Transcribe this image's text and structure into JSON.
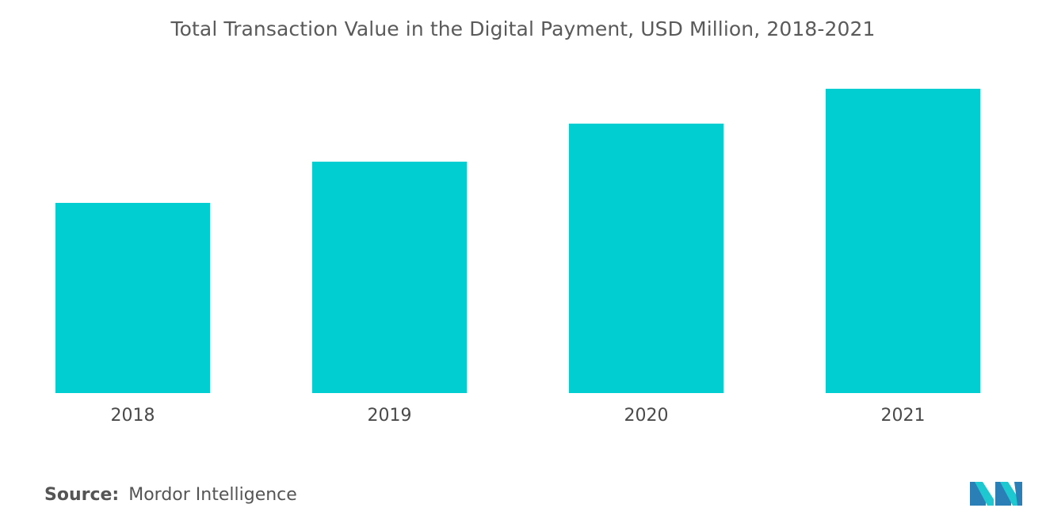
{
  "chart_data": {
    "type": "bar",
    "title": "Total Transaction Value in the Digital Payment, USD Million, 2018-2021",
    "categories": [
      "2018",
      "2019",
      "2020",
      "2021"
    ],
    "values": [
      60,
      73,
      85,
      96
    ],
    "xlabel": "",
    "ylabel": "",
    "ylim": [
      0,
      100
    ],
    "grid": false,
    "legend": "none",
    "bar_color": "#00ced1"
  },
  "source": {
    "label": "Source:",
    "value": "Mordor Intelligence"
  },
  "logo": {
    "icon": "mordor-intelligence-logo-icon",
    "colors": [
      "#2a7fb7",
      "#1ec8d0"
    ]
  }
}
